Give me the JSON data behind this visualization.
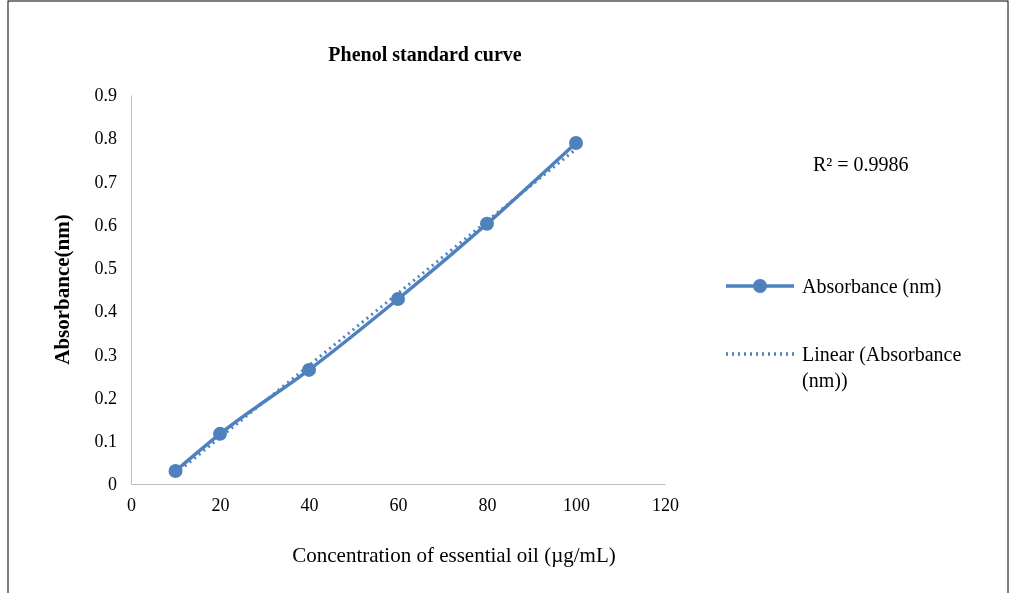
{
  "chart_data": {
    "type": "line",
    "title": "Phenol standard curve",
    "xlabel": "Concentration of essential oil (µg/mL)",
    "ylabel": "Absorbance(nm)",
    "xlim": [
      0,
      120
    ],
    "xticks": [
      0,
      20,
      40,
      60,
      80,
      100,
      120
    ],
    "ylim": [
      0,
      0.9
    ],
    "yticks": [
      0,
      0.1,
      0.2,
      0.3,
      0.4,
      0.5,
      0.6,
      0.7,
      0.8,
      0.9
    ],
    "x": [
      10,
      20,
      40,
      60,
      80,
      100
    ],
    "series": [
      {
        "name": "Absorbance (nm)",
        "color": "#4f81bd",
        "values": [
          0.03,
          0.116,
          0.264,
          0.428,
          0.602,
          0.789
        ],
        "marker": "circle",
        "line_style": "solid"
      },
      {
        "name": "Linear (Absorbance (nm))",
        "color": "#4f81bd",
        "x": [
          10,
          100
        ],
        "values": [
          0.024,
          0.775
        ],
        "marker": "none",
        "line_style": "dotted"
      }
    ],
    "annotations": [
      "R² = 0.9986"
    ],
    "legend": "right",
    "grid": false
  }
}
